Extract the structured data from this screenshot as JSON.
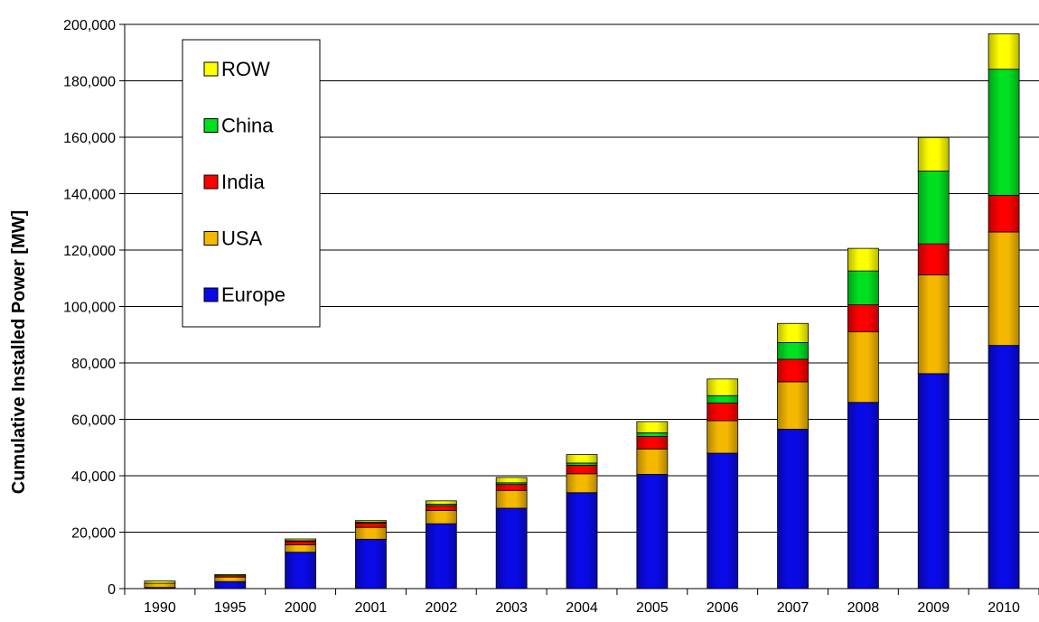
{
  "chart_data": {
    "type": "bar",
    "stacked": true,
    "title": "",
    "xlabel": "",
    "ylabel": "Cumulative Installed Power [MW]",
    "ylim": [
      0,
      200000
    ],
    "yticks": [
      0,
      20000,
      40000,
      60000,
      80000,
      100000,
      120000,
      140000,
      160000,
      180000,
      200000
    ],
    "ytick_labels": [
      "0",
      "20,000",
      "40,000",
      "60,000",
      "80,000",
      "100,000",
      "120,000",
      "140,000",
      "160,000",
      "180,000",
      "200,000"
    ],
    "grid": "horizontal",
    "legend_position": "top-left",
    "categories": [
      "1990",
      "1995",
      "2000",
      "2001",
      "2002",
      "2003",
      "2004",
      "2005",
      "2006",
      "2007",
      "2008",
      "2009",
      "2010"
    ],
    "series": [
      {
        "name": "Europe",
        "color": "#0a0ae6",
        "values": [
          400,
          2500,
          12900,
          17500,
          23000,
          28500,
          34000,
          40500,
          48000,
          56500,
          66000,
          76200,
          86200
        ]
      },
      {
        "name": "USA",
        "color": "#f5b800",
        "values": [
          1500,
          1600,
          2600,
          4200,
          4700,
          6300,
          6700,
          9000,
          11500,
          16800,
          25000,
          35000,
          40200
        ]
      },
      {
        "name": "India",
        "color": "#ff0000",
        "values": [
          0,
          500,
          1200,
          1500,
          1700,
          2100,
          3000,
          4400,
          6300,
          8000,
          9600,
          11000,
          13000
        ]
      },
      {
        "name": "China",
        "color": "#00e020",
        "values": [
          0,
          0,
          300,
          400,
          500,
          600,
          800,
          1300,
          2600,
          5900,
          12000,
          25800,
          44700
        ]
      },
      {
        "name": "ROW",
        "color": "#ffff00",
        "values": [
          800,
          400,
          600,
          500,
          1200,
          1900,
          3000,
          4000,
          5900,
          6800,
          8000,
          11900,
          12600
        ]
      }
    ],
    "legend_order": [
      "ROW",
      "China",
      "India",
      "USA",
      "Europe"
    ]
  }
}
